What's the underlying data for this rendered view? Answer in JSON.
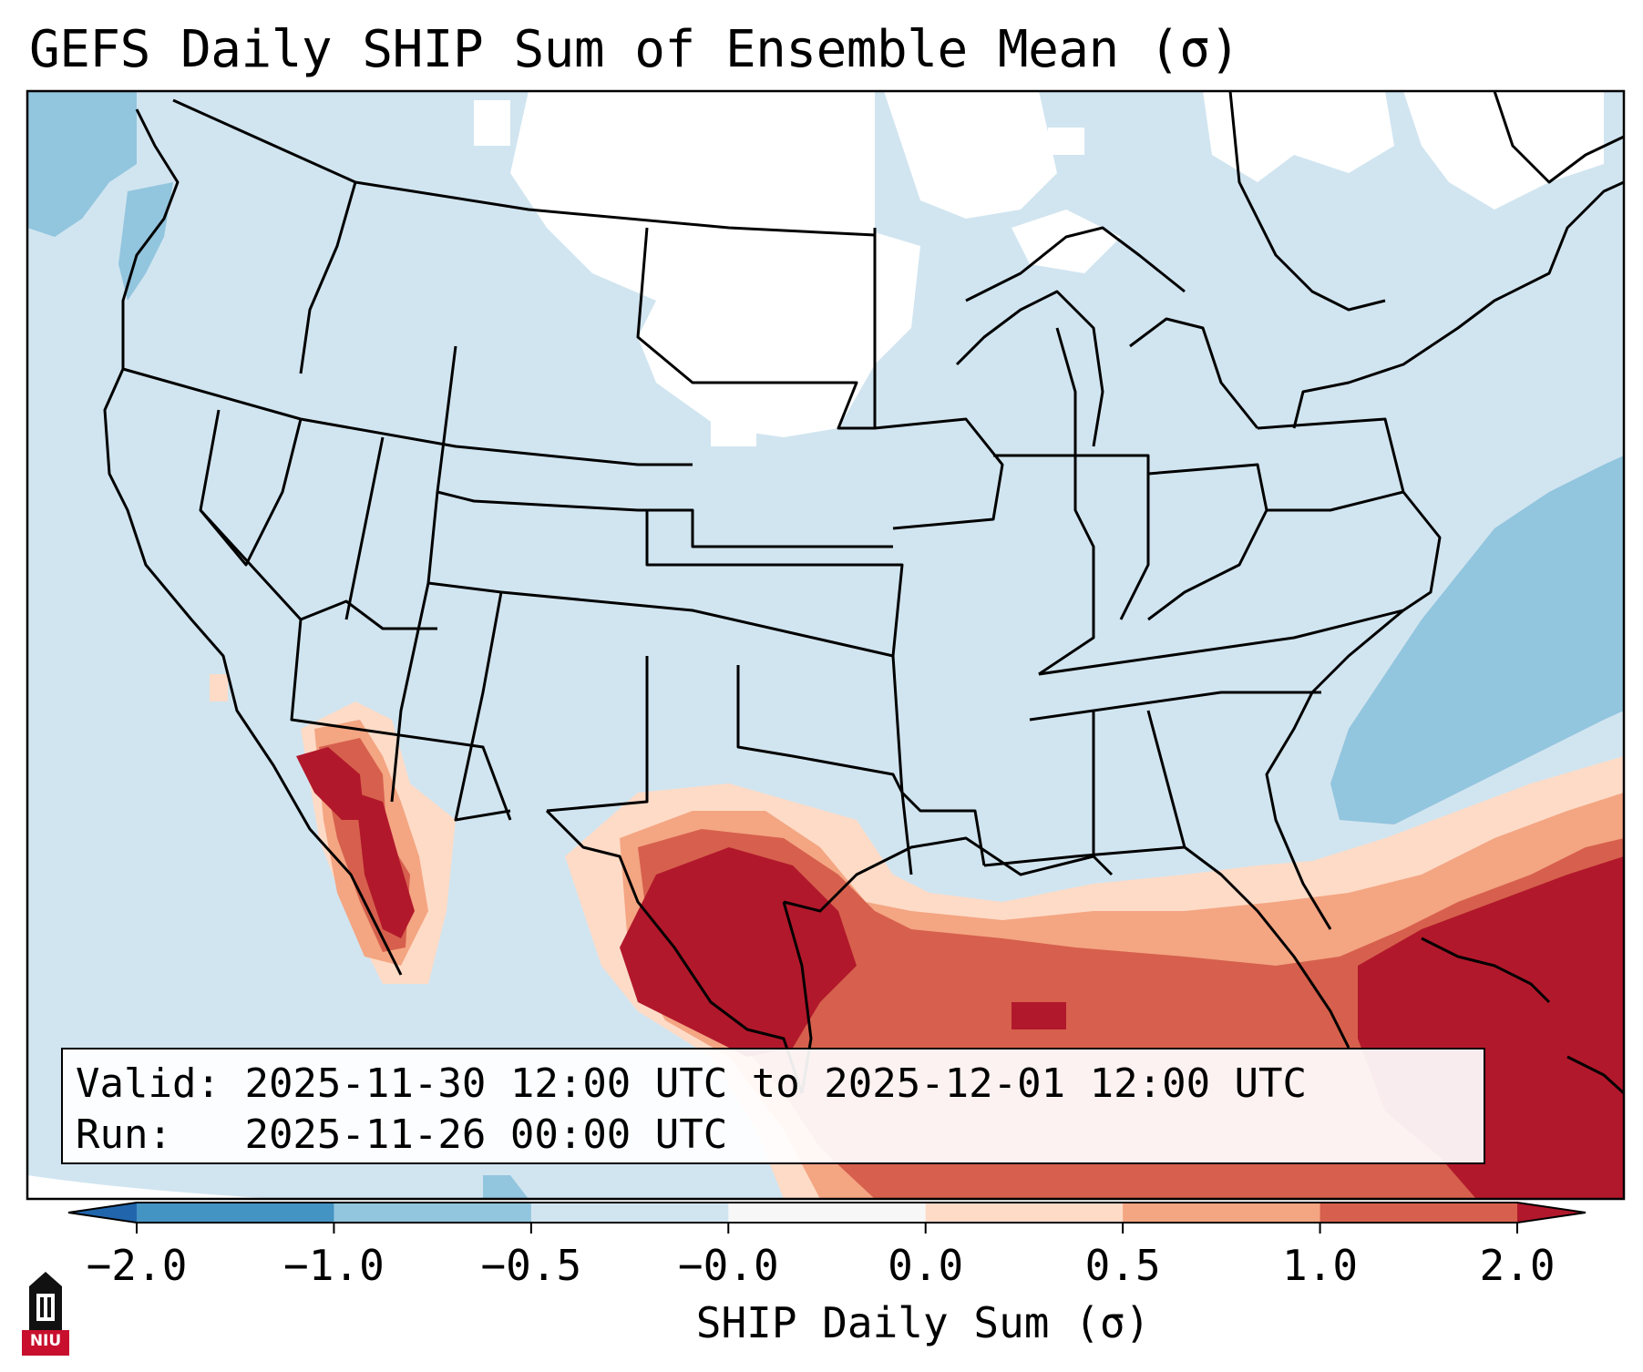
{
  "title": "GEFS Daily SHIP Sum of Ensemble Mean (σ)",
  "valid_label": "Valid:",
  "valid_value": "2025-11-30 12:00 UTC to 2025-12-01 12:00 UTC",
  "run_label": "Run:",
  "run_value": "2025-11-26 00:00 UTC",
  "colorbar": {
    "label": "SHIP Daily Sum (σ)",
    "ticks": [
      "−2.0",
      "−1.0",
      "−0.5",
      "−0.0",
      "0.0",
      "0.5",
      "1.0",
      "2.0"
    ],
    "colors": [
      "#4393c3",
      "#92c5de",
      "#d1e5f0",
      "#f7f7f7",
      "#fddbc7",
      "#f4a582",
      "#d6604d"
    ],
    "under_color": "#2166ac",
    "over_color": "#b2182b"
  },
  "logo": {
    "text": "NIU",
    "icon": "university-tower-icon"
  }
}
